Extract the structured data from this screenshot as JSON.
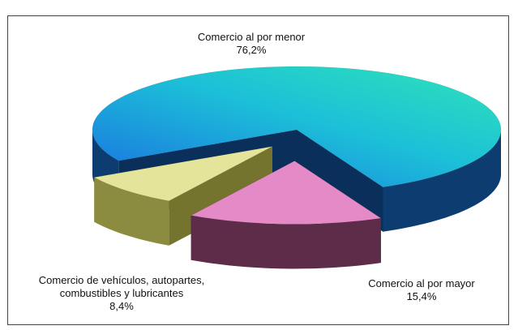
{
  "chart_data": {
    "type": "pie",
    "categories": [
      "Comercio al por menor",
      "Comercio al por mayor",
      "Comercio de vehículos, autopartes, combustibles y lubricantes"
    ],
    "values": [
      76.2,
      15.4,
      8.4
    ],
    "value_labels": [
      "76,2%",
      "15,4%",
      "8,4%"
    ],
    "colors": [
      "#1ca6dc",
      "#e48ac6",
      "#e4e49a"
    ]
  }
}
